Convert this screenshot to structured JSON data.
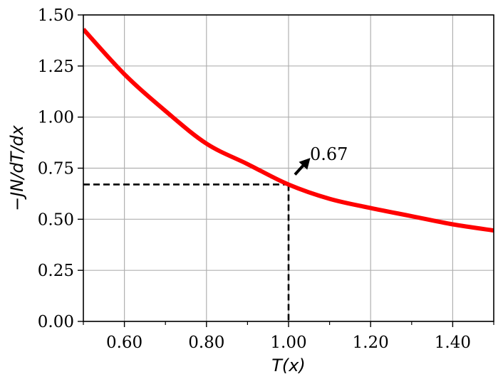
{
  "chart_data": {
    "type": "line",
    "title": "",
    "xlabel": "T(x)",
    "ylabel": "−JN/dT/dx",
    "xlim": [
      0.5,
      1.5
    ],
    "ylim": [
      0.0,
      1.5
    ],
    "x_ticks": [
      0.6,
      0.8,
      1.0,
      1.2,
      1.4
    ],
    "x_tick_labels": [
      "0.60",
      "0.80",
      "1.00",
      "1.20",
      "1.40"
    ],
    "x_minor_ticks": [
      0.5,
      0.7,
      0.9,
      1.1,
      1.3,
      1.5
    ],
    "y_ticks": [
      0.0,
      0.25,
      0.5,
      0.75,
      1.0,
      1.25,
      1.5
    ],
    "y_tick_labels": [
      "0.00",
      "0.25",
      "0.50",
      "0.75",
      "1.00",
      "1.25",
      "1.50"
    ],
    "grid": true,
    "series": [
      {
        "color": "#ff0000",
        "x": [
          0.5,
          0.6,
          0.7,
          0.8,
          0.9,
          1.0,
          1.1,
          1.2,
          1.3,
          1.4,
          1.5
        ],
        "y": [
          1.43,
          1.21,
          1.03,
          0.87,
          0.77,
          0.67,
          0.6,
          0.555,
          0.515,
          0.475,
          0.445
        ]
      }
    ],
    "reference_point": {
      "x": 1.0,
      "y": 0.67,
      "style": "dashed",
      "color": "#000000"
    },
    "annotations": [
      {
        "text": "0.67",
        "arrow": true
      }
    ]
  }
}
